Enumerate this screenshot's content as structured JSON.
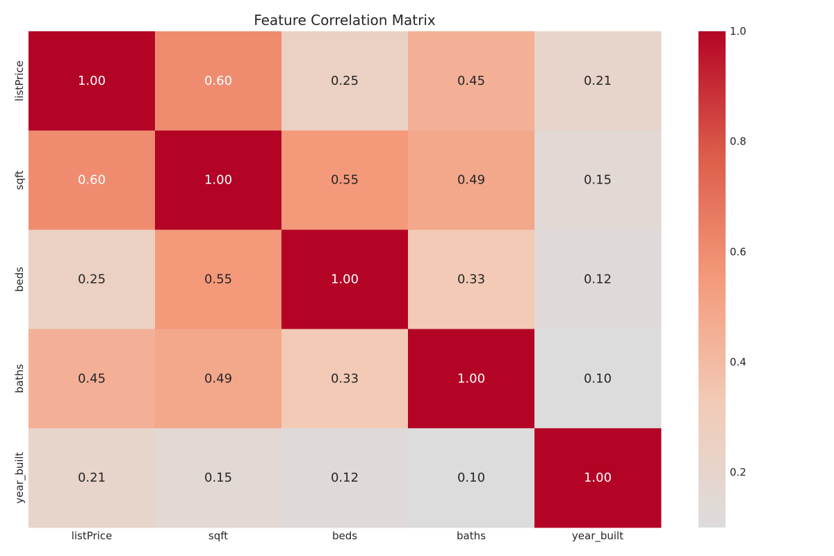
{
  "chart_data": {
    "type": "heatmap",
    "title": "Feature Correlation Matrix",
    "xlabel": "",
    "ylabel": "",
    "x_labels": [
      "listPrice",
      "sqft",
      "beds",
      "baths",
      "year_built"
    ],
    "y_labels": [
      "listPrice",
      "sqft",
      "beds",
      "baths",
      "year_built"
    ],
    "values": [
      [
        1.0,
        0.6,
        0.25,
        0.45,
        0.21
      ],
      [
        0.6,
        1.0,
        0.55,
        0.49,
        0.15
      ],
      [
        0.25,
        0.55,
        1.0,
        0.33,
        0.12
      ],
      [
        0.45,
        0.49,
        0.33,
        1.0,
        0.1
      ],
      [
        0.21,
        0.15,
        0.12,
        0.1,
        1.0
      ]
    ],
    "annotation_format": "0.00",
    "colormap": "coolwarm",
    "vmin": 0.1,
    "vmax": 1.0,
    "colorbar": {
      "ticks": [
        0.2,
        0.4,
        0.6,
        0.8,
        1.0
      ],
      "tick_labels": [
        "0.2",
        "0.4",
        "0.6",
        "0.8",
        "1.0"
      ],
      "position": "right"
    },
    "colors": {
      "low": "#dddcdc",
      "high": "#b40426",
      "text_dark": "#262626",
      "text_light": "#ffffff"
    }
  }
}
